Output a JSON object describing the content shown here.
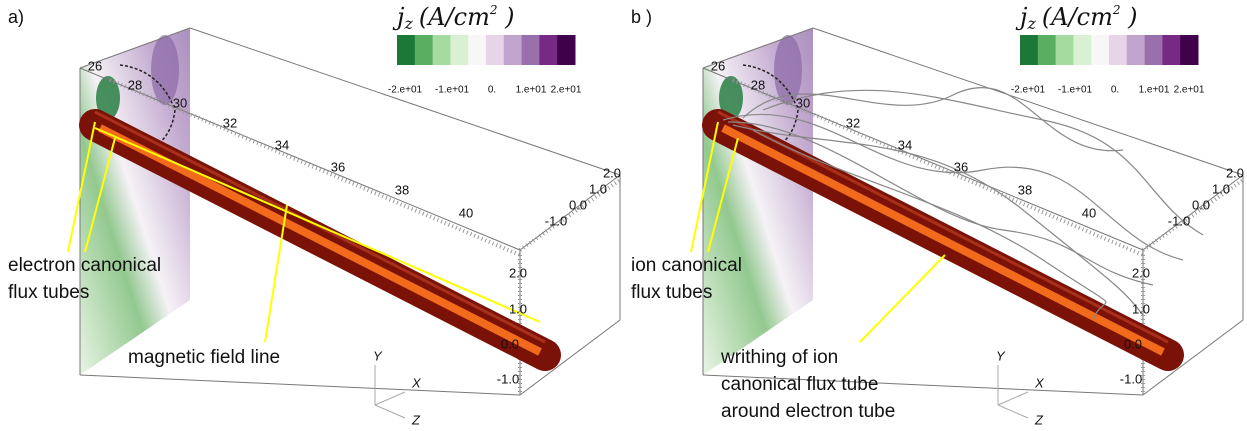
{
  "panels": [
    {
      "label": "a)",
      "colorbar": {
        "title": {
          "symbol": "j",
          "subscript": "z",
          "unit": "(A/cm",
          "power": "2",
          "close": " )"
        },
        "colors": [
          "#1b7837",
          "#5aae61",
          "#a6dba0",
          "#d9f0d3",
          "#f7f7f7",
          "#e7d4e8",
          "#c2a5cf",
          "#9970ab",
          "#762a83",
          "#40004b"
        ],
        "ticks": [
          "-2.e+01",
          "-1.e+01",
          "0.",
          "1.e+01",
          "2.e+01"
        ]
      },
      "axis_long_ticks": [
        "26",
        "28",
        "30",
        "32",
        "34",
        "36",
        "38",
        "40"
      ],
      "axis_depth_ticks": [
        "2.0",
        "1.0",
        "0.0",
        "-1.0"
      ],
      "axis_vertical_ticks": [
        "2.0",
        "1.0",
        "0.0",
        "-1.0"
      ],
      "orientation": [
        "Y",
        "X",
        "Z"
      ],
      "annotations": [
        {
          "lines": [
            "electron canonical",
            "flux tubes"
          ]
        },
        {
          "lines": [
            "magnetic field line"
          ]
        }
      ]
    },
    {
      "label": "b )",
      "colorbar": {
        "title": {
          "symbol": "j",
          "subscript": "z",
          "unit": "(A/cm",
          "power": "2",
          "close": " )"
        },
        "colors": [
          "#1b7837",
          "#5aae61",
          "#a6dba0",
          "#d9f0d3",
          "#f7f7f7",
          "#e7d4e8",
          "#c2a5cf",
          "#9970ab",
          "#762a83",
          "#40004b"
        ],
        "ticks": [
          "-2.e+01",
          "-1.e+01",
          "0.",
          "1.e+01",
          "2.e+01"
        ]
      },
      "axis_long_ticks": [
        "26",
        "28",
        "30",
        "32",
        "34",
        "36",
        "38",
        "40"
      ],
      "axis_depth_ticks": [
        "2.0",
        "1.0",
        "0.0",
        "-1.0"
      ],
      "axis_vertical_ticks": [
        "2.0",
        "1.0",
        "0.0",
        "-1.0"
      ],
      "orientation": [
        "Y",
        "X",
        "Z"
      ],
      "annotations": [
        {
          "lines": [
            "ion canonical",
            "flux tubes"
          ]
        },
        {
          "lines": [
            "writhing of ion",
            "canonical flux tube",
            "around electron tube"
          ]
        }
      ]
    }
  ]
}
